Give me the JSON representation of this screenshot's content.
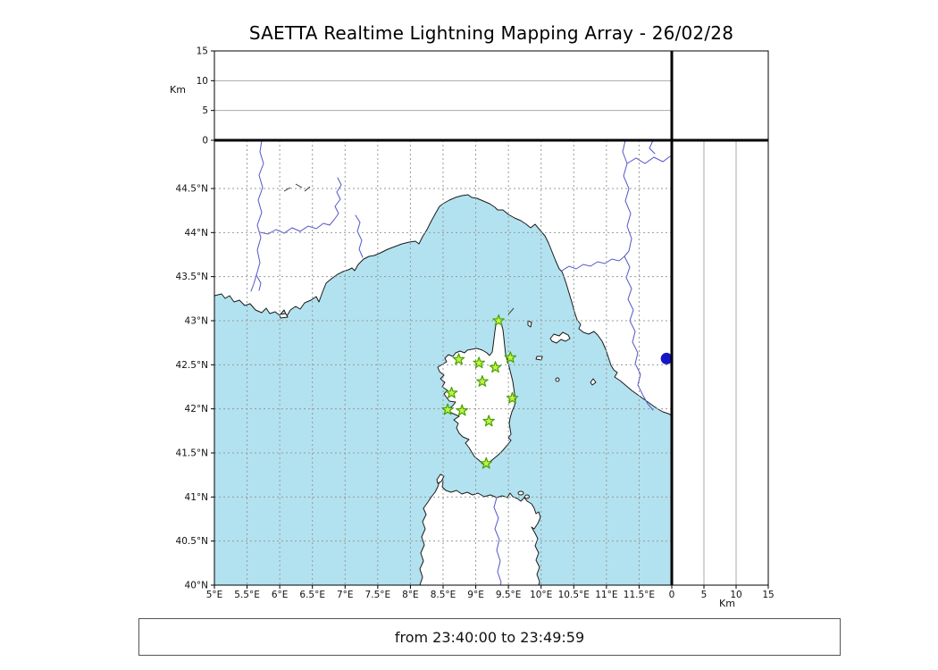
{
  "title": "SAETTA Realtime Lightning Mapping Array - 26/02/28",
  "footer": {
    "time_range": "from 23:40:00 to 23:49:59"
  },
  "axes": {
    "altitude_unit": "Km",
    "altitude_ticks": [
      {
        "value": 0,
        "label": "0"
      },
      {
        "value": 5,
        "label": "5"
      },
      {
        "value": 10,
        "label": "10"
      },
      {
        "value": 15,
        "label": "15"
      }
    ],
    "lon_ticks": [
      {
        "value": 5,
        "label": "5°E"
      },
      {
        "value": 5.5,
        "label": "5.5°E"
      },
      {
        "value": 6,
        "label": "6°E"
      },
      {
        "value": 6.5,
        "label": "6.5°E"
      },
      {
        "value": 7,
        "label": "7°E"
      },
      {
        "value": 7.5,
        "label": "7.5°E"
      },
      {
        "value": 8,
        "label": "8°E"
      },
      {
        "value": 8.5,
        "label": "8.5°E"
      },
      {
        "value": 9,
        "label": "9°E"
      },
      {
        "value": 9.5,
        "label": "9.5°E"
      },
      {
        "value": 10,
        "label": "10°E"
      },
      {
        "value": 10.5,
        "label": "10.5°E"
      },
      {
        "value": 11,
        "label": "11°E"
      },
      {
        "value": 11.5,
        "label": "11.5°E"
      }
    ],
    "lat_ticks": [
      {
        "value": 44.5,
        "label": "44.5°N"
      },
      {
        "value": 44,
        "label": "44°N"
      },
      {
        "value": 43.5,
        "label": "43.5°N"
      },
      {
        "value": 43,
        "label": "43°N"
      },
      {
        "value": 42.5,
        "label": "42.5°N"
      },
      {
        "value": 42,
        "label": "42°N"
      },
      {
        "value": 41.5,
        "label": "41.5°N"
      },
      {
        "value": 41,
        "label": "41°N"
      },
      {
        "value": 40.5,
        "label": "40.5°N"
      },
      {
        "value": 40,
        "label": "40°N"
      }
    ]
  },
  "map": {
    "sea_color": "#b2e2ef",
    "land_color": "#ffffff",
    "coast_color": "#1a1a1a",
    "river_color": "#5555cc",
    "grid_color": "#999999",
    "station_marker": {
      "fill": "#c8f046",
      "stroke": "#44a400"
    },
    "stations": [
      {
        "lon": 9.35,
        "lat": 43.0
      },
      {
        "lon": 8.74,
        "lat": 42.56
      },
      {
        "lon": 9.05,
        "lat": 42.52
      },
      {
        "lon": 9.3,
        "lat": 42.47
      },
      {
        "lon": 9.53,
        "lat": 42.58
      },
      {
        "lon": 9.1,
        "lat": 42.31
      },
      {
        "lon": 8.63,
        "lat": 42.18
      },
      {
        "lon": 9.56,
        "lat": 42.12
      },
      {
        "lon": 8.57,
        "lat": 41.99
      },
      {
        "lon": 8.79,
        "lat": 41.98
      },
      {
        "lon": 9.2,
        "lat": 41.86
      },
      {
        "lon": 9.16,
        "lat": 41.38
      }
    ],
    "event_marker": {
      "lon": 11.92,
      "lat": 42.57,
      "color": "#1616c8"
    }
  }
}
